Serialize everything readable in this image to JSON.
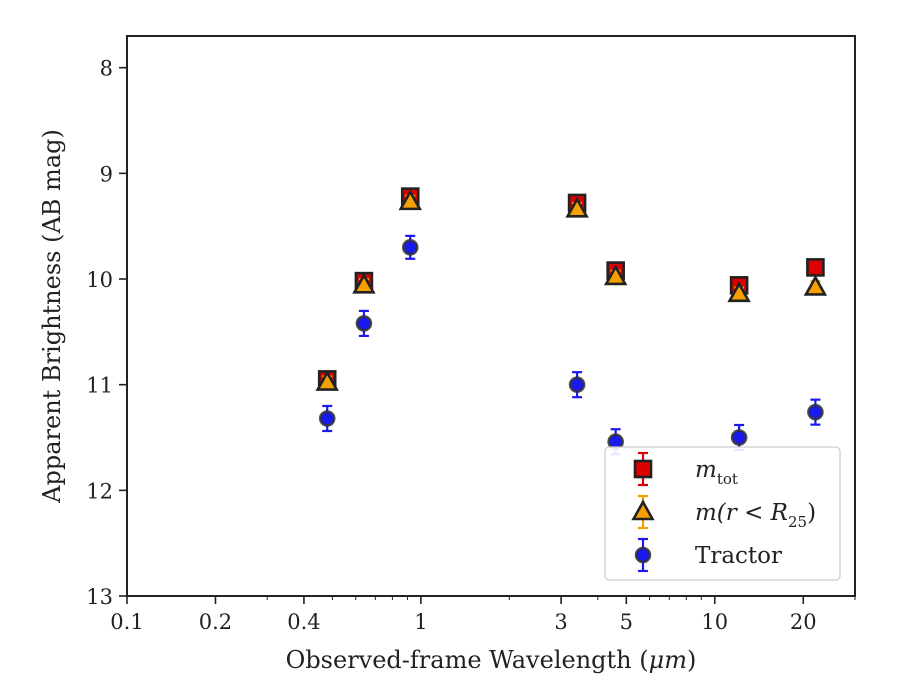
{
  "chart_data": {
    "type": "scatter",
    "xlabel_prefix": "Observed-frame Wavelength (",
    "xlabel_unit": "μm",
    "xlabel_suffix": ")",
    "ylabel": "Apparent Brightness (AB mag)",
    "xscale": "log",
    "xlim": [
      0.1,
      30
    ],
    "ylim": [
      13,
      7.7
    ],
    "y_inverted": true,
    "xticks": [
      0.1,
      0.2,
      0.4,
      1,
      3,
      5,
      10,
      20
    ],
    "xtick_labels": [
      "0.1",
      "0.2",
      "0.4",
      "1",
      "3",
      "5",
      "10",
      "20"
    ],
    "yticks": [
      8,
      9,
      10,
      11,
      12,
      13
    ],
    "ytick_labels": [
      "8",
      "9",
      "10",
      "11",
      "12",
      "13"
    ],
    "grid": false,
    "legend_position": "bottom-right",
    "series": [
      {
        "key": "mtot",
        "name": "m_tot",
        "legend_main": "m",
        "legend_sub": "tot",
        "marker": "square",
        "color": "#dd0000",
        "x": [
          0.48,
          0.64,
          0.92,
          3.4,
          4.6,
          12.1,
          22.0
        ],
        "y": [
          10.95,
          10.02,
          9.22,
          9.28,
          9.92,
          10.06,
          9.89
        ],
        "yerr": [
          0.04,
          0.04,
          0.04,
          0.04,
          0.04,
          0.04,
          0.04
        ]
      },
      {
        "key": "r25",
        "name": "m(r < R25)",
        "legend_main": "m(r < R",
        "legend_sub": "25",
        "legend_close": ")",
        "marker": "triangle",
        "color": "#f5a000",
        "x": [
          0.48,
          0.64,
          0.92,
          3.4,
          4.6,
          12.1,
          22.0
        ],
        "y": [
          10.98,
          10.06,
          9.27,
          9.34,
          9.98,
          10.14,
          10.08
        ],
        "yerr": [
          0.03,
          0.03,
          0.03,
          0.03,
          0.03,
          0.03,
          0.03
        ]
      },
      {
        "key": "tractor",
        "name": "Tractor",
        "legend_main": "Tractor",
        "marker": "circle",
        "color": "#1a1aee",
        "x": [
          0.48,
          0.64,
          0.92,
          3.4,
          4.6,
          12.1,
          22.0
        ],
        "y": [
          11.32,
          10.42,
          9.7,
          11.0,
          11.54,
          11.5,
          11.26
        ],
        "yerr": [
          0.09,
          0.09,
          0.08,
          0.09,
          0.09,
          0.09,
          0.09
        ]
      }
    ]
  }
}
